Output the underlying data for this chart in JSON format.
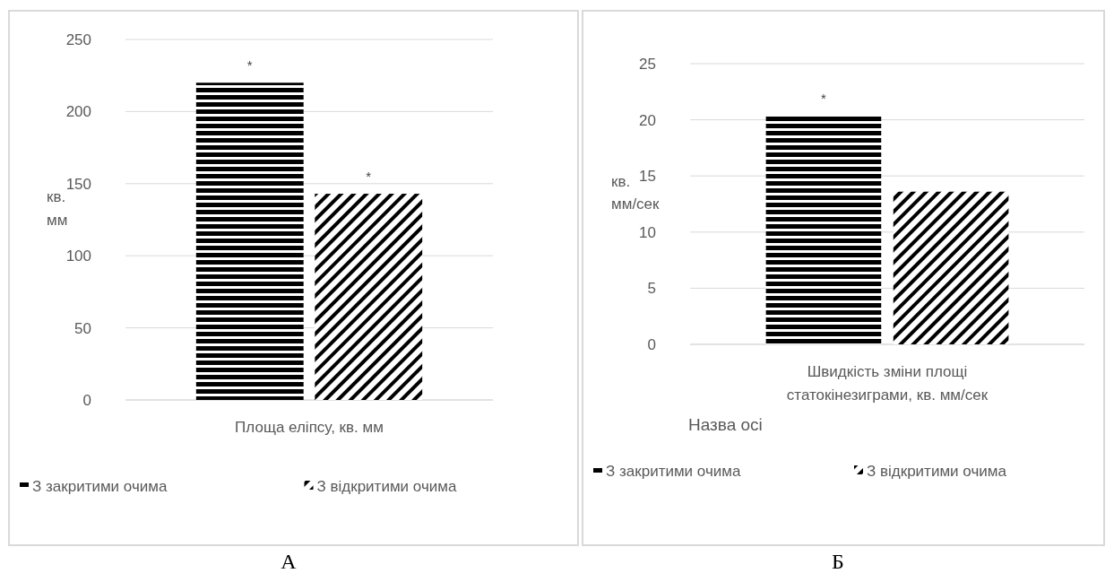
{
  "chart_data": [
    {
      "type": "bar",
      "ylabel": "кв. мм",
      "categories": [
        "Площа еліпсу, кв. мм"
      ],
      "ylim": [
        0,
        250
      ],
      "yticks": [
        0,
        50,
        100,
        150,
        200,
        250
      ],
      "grid": "y",
      "legend": "bottom",
      "annotations": [
        "А"
      ],
      "series": [
        {
          "name": "З закритими очима",
          "color": "#000000",
          "values": [
            220
          ],
          "value_labels": [
            "*"
          ]
        },
        {
          "name": "З відкритими очима",
          "color": "#000000",
          "values": [
            143
          ],
          "value_labels": [
            "*"
          ]
        }
      ]
    },
    {
      "type": "bar",
      "ylabel": "кв. мм/сек",
      "xlabel": "Назва осі",
      "categories": [
        "Швидкість зміни площі статокінезиграми, кв. мм/сек"
      ],
      "ylim": [
        0,
        25
      ],
      "yticks": [
        0,
        5,
        10,
        15,
        20,
        25
      ],
      "grid": "y",
      "legend": "bottom",
      "annotations": [
        "Б"
      ],
      "series": [
        {
          "name": "З закритими очима",
          "color": "#000000",
          "values": [
            20.4
          ],
          "value_labels": [
            "*"
          ]
        },
        {
          "name": "З відкритими очима",
          "color": "#000000",
          "values": [
            13.6
          ],
          "value_labels": [
            null
          ]
        }
      ]
    }
  ]
}
